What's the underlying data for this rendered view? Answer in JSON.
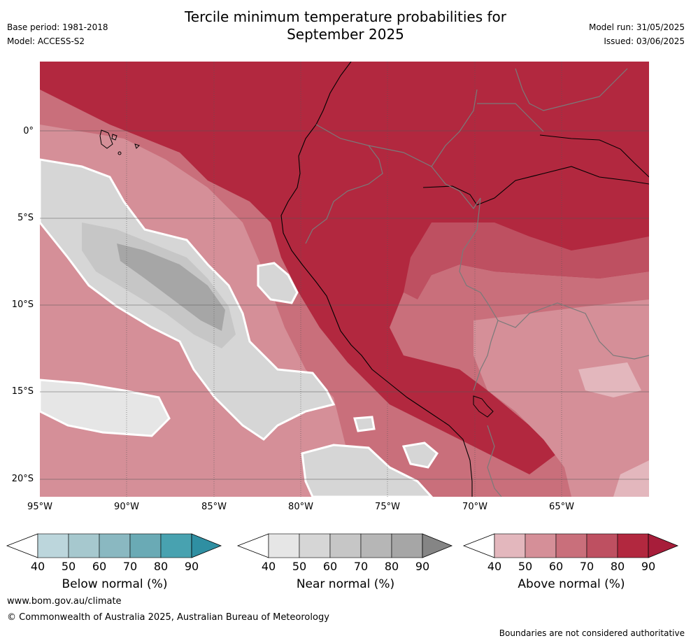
{
  "title_line1": "Tercile minimum temperature probabilities for",
  "title_line2": "September 2025",
  "meta": {
    "base_period": "Base period: 1981-2018",
    "model": "Model: ACCESS-S2",
    "model_run": "Model run: 31/05/2025",
    "issued": "Issued: 03/06/2025"
  },
  "axes": {
    "lat_labels": [
      "0°",
      "5°S",
      "10°S",
      "15°S",
      "20°S"
    ],
    "lon_labels": [
      "95°W",
      "90°W",
      "85°W",
      "80°W",
      "75°W",
      "70°W",
      "65°W"
    ]
  },
  "colorbars": [
    {
      "label": "Below normal (%)",
      "ticks": [
        "40",
        "50",
        "60",
        "70",
        "80",
        "90"
      ],
      "colors": [
        "#bcd6dc",
        "#a6c8ce",
        "#8ab8c1",
        "#6aaab5",
        "#48a2b0",
        "#2f8fa2"
      ]
    },
    {
      "label": "Near normal (%)",
      "ticks": [
        "40",
        "50",
        "60",
        "70",
        "80",
        "90"
      ],
      "colors": [
        "#e6e6e6",
        "#d6d6d6",
        "#c6c6c6",
        "#b6b6b6",
        "#a6a6a6",
        "#858585"
      ]
    },
    {
      "label": "Above normal (%)",
      "ticks": [
        "40",
        "50",
        "60",
        "70",
        "80",
        "90"
      ],
      "colors": [
        "#e3b7bd",
        "#d58f98",
        "#c96f7b",
        "#be5061",
        "#b2283f",
        "#a71d3a"
      ]
    }
  ],
  "footer": {
    "url": "www.bom.gov.au/climate",
    "copyright": "© Commonwealth of Australia 2025, Australian Bureau of Meteorology",
    "disclaimer": "Boundaries are not considered authoritative"
  }
}
